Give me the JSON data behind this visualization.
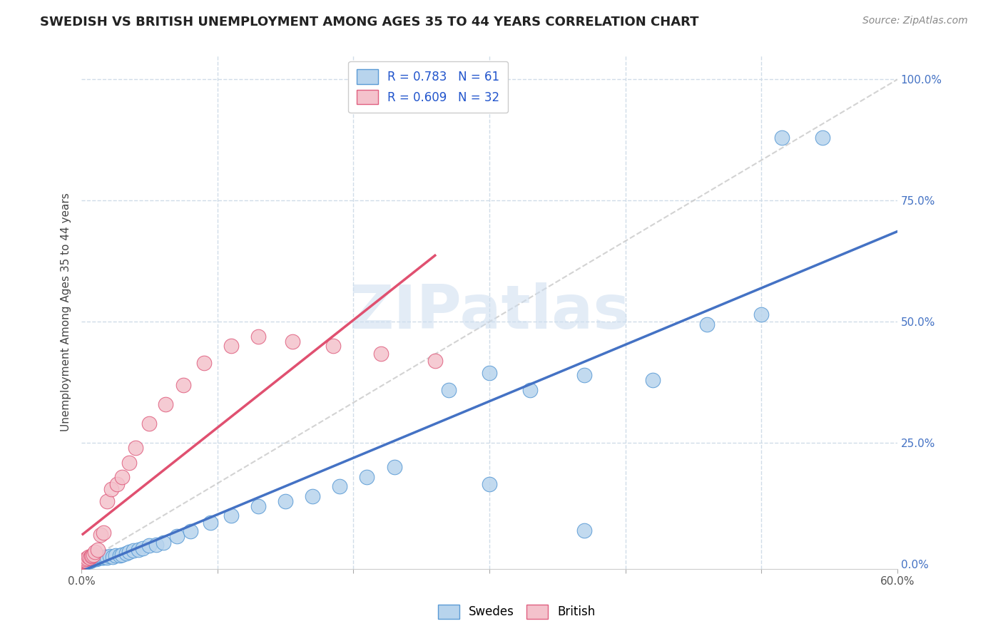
{
  "title": "SWEDISH VS BRITISH UNEMPLOYMENT AMONG AGES 35 TO 44 YEARS CORRELATION CHART",
  "source": "Source: ZipAtlas.com",
  "ylabel": "Unemployment Among Ages 35 to 44 years",
  "xlim": [
    0.0,
    0.6
  ],
  "ylim": [
    -0.01,
    1.05
  ],
  "y_ticks_right": [
    0.0,
    0.25,
    0.5,
    0.75,
    1.0
  ],
  "y_tick_labels_right": [
    "0.0%",
    "25.0%",
    "50.0%",
    "75.0%",
    "100.0%"
  ],
  "legend_label1": "Swedes",
  "legend_label2": "British",
  "color_swedes_face": "#b8d4ed",
  "color_swedes_edge": "#5b9bd5",
  "color_british_face": "#f4c2cc",
  "color_british_edge": "#e06080",
  "color_line_swedes": "#4472c4",
  "color_line_british": "#e05070",
  "color_ref_line": "#c8c8c8",
  "color_grid": "#d0dce8",
  "background_color": "#ffffff",
  "watermark": "ZIPatlas",
  "swedes_x": [
    0.001,
    0.001,
    0.001,
    0.002,
    0.002,
    0.002,
    0.003,
    0.003,
    0.004,
    0.004,
    0.005,
    0.005,
    0.006,
    0.006,
    0.007,
    0.007,
    0.008,
    0.009,
    0.01,
    0.01,
    0.011,
    0.012,
    0.013,
    0.015,
    0.016,
    0.017,
    0.019,
    0.021,
    0.023,
    0.025,
    0.028,
    0.03,
    0.033,
    0.035,
    0.038,
    0.042,
    0.045,
    0.05,
    0.055,
    0.06,
    0.07,
    0.08,
    0.095,
    0.11,
    0.13,
    0.15,
    0.17,
    0.19,
    0.21,
    0.23,
    0.27,
    0.3,
    0.33,
    0.37,
    0.42,
    0.46,
    0.5,
    0.515,
    0.545,
    0.3,
    0.37
  ],
  "swedes_y": [
    0.005,
    0.005,
    0.005,
    0.006,
    0.007,
    0.008,
    0.005,
    0.006,
    0.005,
    0.007,
    0.006,
    0.008,
    0.007,
    0.009,
    0.008,
    0.01,
    0.009,
    0.01,
    0.01,
    0.012,
    0.01,
    0.012,
    0.013,
    0.014,
    0.013,
    0.015,
    0.014,
    0.016,
    0.015,
    0.018,
    0.018,
    0.02,
    0.022,
    0.025,
    0.028,
    0.03,
    0.033,
    0.038,
    0.04,
    0.045,
    0.058,
    0.068,
    0.085,
    0.1,
    0.12,
    0.13,
    0.14,
    0.16,
    0.18,
    0.2,
    0.36,
    0.395,
    0.36,
    0.39,
    0.38,
    0.495,
    0.515,
    0.88,
    0.88,
    0.165,
    0.07
  ],
  "british_x": [
    0.001,
    0.001,
    0.002,
    0.002,
    0.003,
    0.003,
    0.004,
    0.005,
    0.006,
    0.007,
    0.008,
    0.009,
    0.01,
    0.012,
    0.014,
    0.016,
    0.019,
    0.022,
    0.026,
    0.03,
    0.035,
    0.04,
    0.05,
    0.062,
    0.075,
    0.09,
    0.11,
    0.13,
    0.155,
    0.185,
    0.22,
    0.26
  ],
  "british_y": [
    0.005,
    0.007,
    0.006,
    0.008,
    0.008,
    0.01,
    0.012,
    0.015,
    0.014,
    0.016,
    0.018,
    0.02,
    0.025,
    0.03,
    0.06,
    0.065,
    0.13,
    0.155,
    0.165,
    0.18,
    0.21,
    0.24,
    0.29,
    0.33,
    0.37,
    0.415,
    0.45,
    0.47,
    0.46,
    0.45,
    0.435,
    0.42
  ]
}
